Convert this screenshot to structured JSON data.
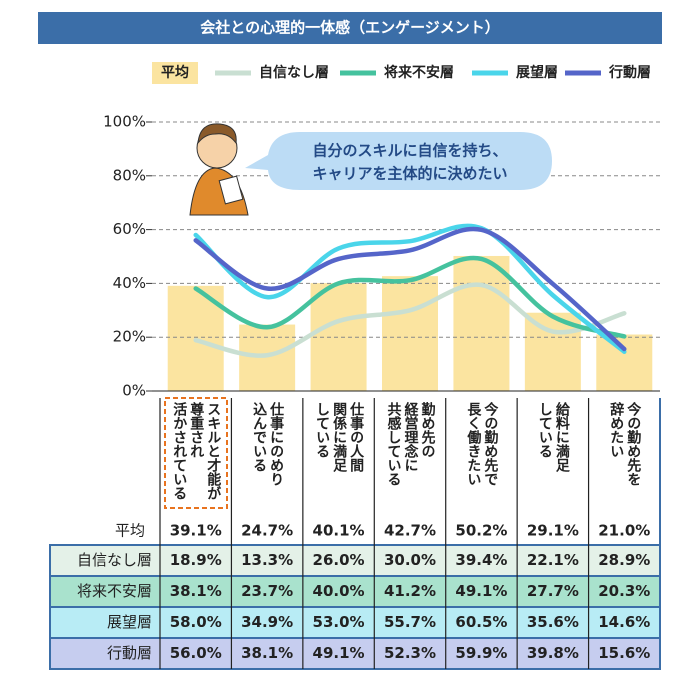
{
  "chart_data": {
    "type": "combo",
    "title": "会社との心理的一体感（エンゲージメント）",
    "annotations": [
      "自分のスキルに自信を持ち、",
      "キャリアを主体的に決めたい"
    ],
    "categories": [
      "スキルと才能が\n尊重され\n活かされている",
      "仕事にのめり\n込んでいる",
      "仕事の人間\n関係に満足\nしている",
      "勤め先の\n経営理念に\n共感している",
      "今の勤め先で\n長く働きたい",
      "給料に満足\nしている",
      "今の勤め先を\n辞めたい"
    ],
    "bars": {
      "name": "平均",
      "color": "#fbe4a0",
      "values": [
        39.1,
        24.7,
        40.1,
        42.7,
        50.2,
        29.1,
        21.0
      ],
      "value_labels": [
        "39.1%",
        "24.7%",
        "40.1%",
        "42.7%",
        "50.2%",
        "29.1%",
        "21.0%"
      ]
    },
    "series": [
      {
        "name": "自信なし層",
        "color": "#c9dfd2",
        "row_color": "#e4f1e8",
        "values": [
          18.9,
          13.3,
          26.0,
          30.0,
          39.4,
          22.1,
          28.9
        ],
        "value_labels": [
          "18.9%",
          "13.3%",
          "26.0%",
          "30.0%",
          "39.4%",
          "22.1%",
          "28.9%"
        ]
      },
      {
        "name": "将来不安層",
        "color": "#45c29e",
        "row_color": "#a9e2cd",
        "values": [
          38.1,
          23.7,
          40.0,
          41.2,
          49.1,
          27.7,
          20.3
        ],
        "value_labels": [
          "38.1%",
          "23.7%",
          "40.0%",
          "41.2%",
          "49.1%",
          "27.7%",
          "20.3%"
        ]
      },
      {
        "name": "展望層",
        "color": "#4ad5ea",
        "row_color": "#b8ecf5",
        "values": [
          58.0,
          34.9,
          53.0,
          55.7,
          60.5,
          35.6,
          14.6
        ],
        "value_labels": [
          "58.0%",
          "34.9%",
          "53.0%",
          "55.7%",
          "60.5%",
          "35.6%",
          "14.6%"
        ]
      },
      {
        "name": "行動層",
        "color": "#5565c9",
        "row_color": "#c6cdef",
        "values": [
          56.0,
          38.1,
          49.1,
          52.3,
          59.9,
          39.8,
          15.6
        ],
        "value_labels": [
          "56.0%",
          "38.1%",
          "49.1%",
          "52.3%",
          "59.9%",
          "39.8%",
          "15.6%"
        ]
      }
    ],
    "ylim": [
      0,
      100
    ],
    "yticks": [
      {
        "value": 0,
        "label": "0%"
      },
      {
        "value": 20,
        "label": "20%"
      },
      {
        "value": 40,
        "label": "40%"
      },
      {
        "value": 60,
        "label": "60%"
      },
      {
        "value": 80,
        "label": "80%"
      },
      {
        "value": 100,
        "label": "100%"
      }
    ],
    "grid": true
  }
}
